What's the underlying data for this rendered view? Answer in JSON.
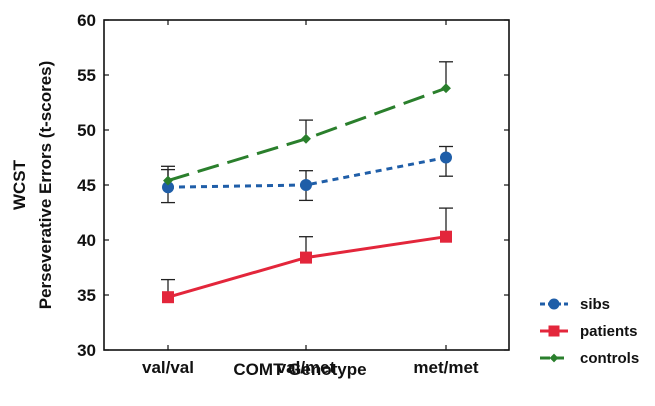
{
  "chart_data": {
    "type": "line",
    "title": "",
    "xlabel": "COMT Genotype",
    "ylabel": [
      "WCST",
      "Perseverative Errors (t-scores)"
    ],
    "categories": [
      "val/val",
      "val/met",
      "met/met"
    ],
    "ylim": [
      30,
      60
    ],
    "yticks": [
      30,
      35,
      40,
      45,
      50,
      55,
      60
    ],
    "grid": false,
    "legend_position": "bottom-right",
    "series": [
      {
        "name": "sibs",
        "values": [
          44.8,
          45.0,
          47.5
        ],
        "error_low": [
          43.4,
          43.6,
          45.8
        ],
        "error_high": [
          46.4,
          46.3,
          48.5
        ],
        "color": "#1f5ea8",
        "line": "short-dash",
        "marker": "circle"
      },
      {
        "name": "patients",
        "values": [
          34.8,
          38.4,
          40.3
        ],
        "error_low": [
          34.8,
          38.4,
          40.3
        ],
        "error_high": [
          36.4,
          40.3,
          42.9
        ],
        "color": "#e3263b",
        "line": "solid",
        "marker": "square"
      },
      {
        "name": "controls",
        "values": [
          45.4,
          49.2,
          53.8
        ],
        "error_low": [
          45.4,
          49.2,
          53.8
        ],
        "error_high": [
          46.7,
          50.9,
          56.2
        ],
        "color": "#2a7f2c",
        "line": "long-dash",
        "marker": "diamond"
      }
    ]
  }
}
